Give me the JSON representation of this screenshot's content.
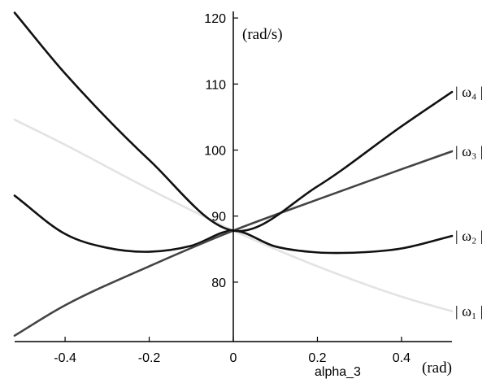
{
  "chart_data": {
    "type": "line",
    "title": "",
    "xlabel": "alpha_3",
    "x_unit": "(rad)",
    "y_unit": "(rad/s)",
    "xlim": [
      -0.52,
      0.52
    ],
    "ylim": [
      71,
      121
    ],
    "x_ticks": [
      -0.4,
      -0.2,
      0,
      0.2,
      0.4
    ],
    "x_tick_labels": [
      "-0.4",
      "-0.2",
      "0",
      "0.2",
      "0.4"
    ],
    "y_ticks": [
      80,
      90,
      100,
      110,
      120
    ],
    "y_tick_labels": [
      "80",
      "90",
      "100",
      "110",
      "120"
    ],
    "grid": false,
    "legend_placement": "right, labels at curve ends",
    "series": [
      {
        "name": "| ω₁ |",
        "color": "#e3e3e3",
        "x": [
          -0.52,
          -0.4,
          -0.2,
          0,
          0.2,
          0.4,
          0.52
        ],
        "y": [
          104.6,
          100.8,
          94.1,
          87.8,
          82.4,
          77.8,
          75.6
        ]
      },
      {
        "name": "| ω₂ |",
        "color": "#111111",
        "x": [
          -0.52,
          -0.4,
          -0.3,
          -0.2,
          -0.1,
          0,
          0.1,
          0.2,
          0.3,
          0.4,
          0.52
        ],
        "y": [
          93.1,
          87.3,
          85.2,
          84.6,
          85.5,
          87.8,
          85.4,
          84.5,
          84.5,
          85.1,
          87.0
        ]
      },
      {
        "name": "| ω₃ |",
        "color": "#444444",
        "x": [
          -0.52,
          -0.4,
          -0.2,
          0,
          0.2,
          0.4,
          0.52
        ],
        "y": [
          71.9,
          76.5,
          82.4,
          87.8,
          92.5,
          97.1,
          99.8
        ]
      },
      {
        "name": "| ω₄ |",
        "color": "#111111",
        "x": [
          -0.52,
          -0.4,
          -0.2,
          0,
          0.2,
          0.4,
          0.52
        ],
        "y": [
          120.8,
          111.6,
          98.5,
          87.8,
          94.5,
          103.6,
          108.8
        ]
      }
    ]
  }
}
